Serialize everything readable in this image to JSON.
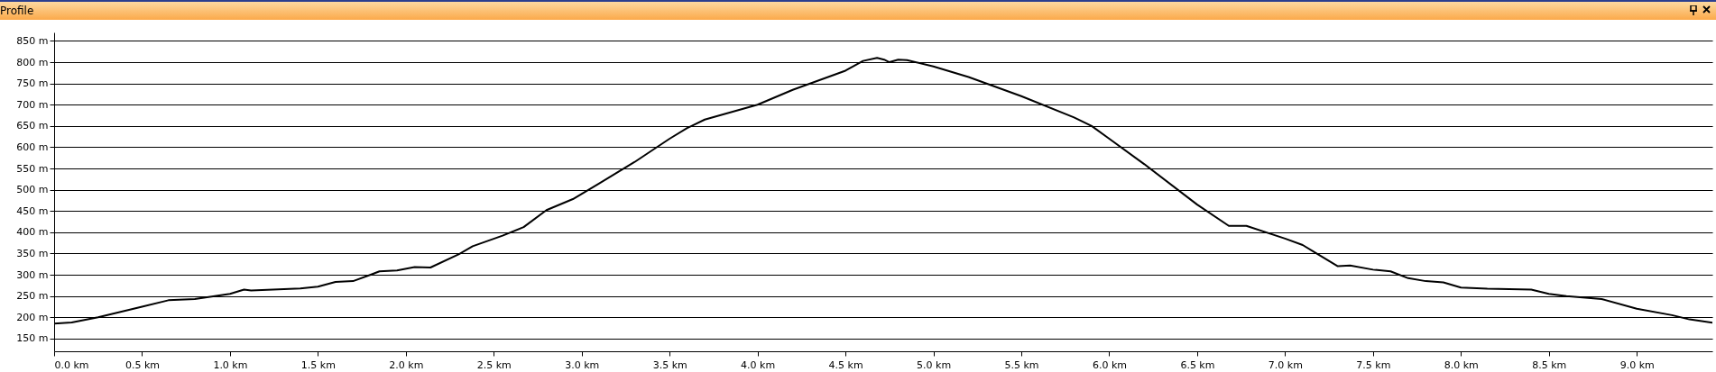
{
  "chart_data": {
    "type": "line",
    "title": "Profile",
    "x": [
      0,
      0.1,
      0.25,
      0.5,
      0.65,
      0.8,
      1.0,
      1.08,
      1.12,
      1.4,
      1.5,
      1.6,
      1.7,
      1.8,
      1.85,
      1.95,
      2.05,
      2.14,
      2.3,
      2.38,
      2.55,
      2.67,
      2.8,
      2.95,
      3.1,
      3.3,
      3.5,
      3.6,
      3.7,
      4.0,
      4.2,
      4.5,
      4.6,
      4.68,
      4.72,
      4.75,
      4.8,
      4.85,
      5.0,
      5.2,
      5.5,
      5.8,
      5.9,
      6.0,
      6.2,
      6.5,
      6.68,
      6.78,
      7.0,
      7.1,
      7.16,
      7.3,
      7.37,
      7.5,
      7.6,
      7.7,
      7.8,
      7.9,
      8.0,
      8.15,
      8.4,
      8.5,
      8.6,
      8.8,
      9.0,
      9.2,
      9.3,
      9.43
    ],
    "series": [
      {
        "color": "#000000",
        "values": [
          185,
          188,
          200,
          225,
          240,
          243,
          255,
          265,
          263,
          268,
          272,
          283,
          285,
          300,
          308,
          310,
          318,
          317,
          348,
          367,
          392,
          412,
          452,
          478,
          515,
          565,
          620,
          645,
          665,
          700,
          735,
          780,
          803,
          810,
          806,
          800,
          806,
          805,
          790,
          765,
          720,
          670,
          650,
          620,
          560,
          465,
          415,
          415,
          385,
          370,
          355,
          320,
          322,
          312,
          308,
          292,
          285,
          282,
          270,
          267,
          265,
          255,
          250,
          243,
          220,
          205,
          195,
          187
        ]
      }
    ],
    "xlim": [
      0,
      9.43
    ],
    "ylim": [
      120,
      870
    ],
    "xticks": [
      {
        "value": 0,
        "label": "0.0 km"
      },
      {
        "value": 0.5,
        "label": "0.5 km"
      },
      {
        "value": 1,
        "label": "1.0 km"
      },
      {
        "value": 1.5,
        "label": "1.5 km"
      },
      {
        "value": 2,
        "label": "2.0 km"
      },
      {
        "value": 2.5,
        "label": "2.5 km"
      },
      {
        "value": 3,
        "label": "3.0 km"
      },
      {
        "value": 3.5,
        "label": "3.5 km"
      },
      {
        "value": 4,
        "label": "4.0 km"
      },
      {
        "value": 4.5,
        "label": "4.5 km"
      },
      {
        "value": 5,
        "label": "5.0 km"
      },
      {
        "value": 5.5,
        "label": "5.5 km"
      },
      {
        "value": 6,
        "label": "6.0 km"
      },
      {
        "value": 6.5,
        "label": "6.5 km"
      },
      {
        "value": 7,
        "label": "7.0 km"
      },
      {
        "value": 7.5,
        "label": "7.5 km"
      },
      {
        "value": 8,
        "label": "8.0 km"
      },
      {
        "value": 8.5,
        "label": "8.5 km"
      },
      {
        "value": 9,
        "label": "9.0 km"
      }
    ],
    "yticks": [
      {
        "value": 150,
        "label": "150 m"
      },
      {
        "value": 200,
        "label": "200 m"
      },
      {
        "value": 250,
        "label": "250 m"
      },
      {
        "value": 300,
        "label": "300 m"
      },
      {
        "value": 350,
        "label": "350 m"
      },
      {
        "value": 400,
        "label": "400 m"
      },
      {
        "value": 450,
        "label": "450 m"
      },
      {
        "value": 500,
        "label": "500 m"
      },
      {
        "value": 550,
        "label": "550 m"
      },
      {
        "value": 600,
        "label": "600 m"
      },
      {
        "value": 650,
        "label": "650 m"
      },
      {
        "value": 700,
        "label": "700 m"
      },
      {
        "value": 750,
        "label": "750 m"
      },
      {
        "value": 800,
        "label": "800 m"
      },
      {
        "value": 850,
        "label": "850 m"
      }
    ],
    "grid": "y",
    "marker": "none",
    "line_style": "solid"
  }
}
